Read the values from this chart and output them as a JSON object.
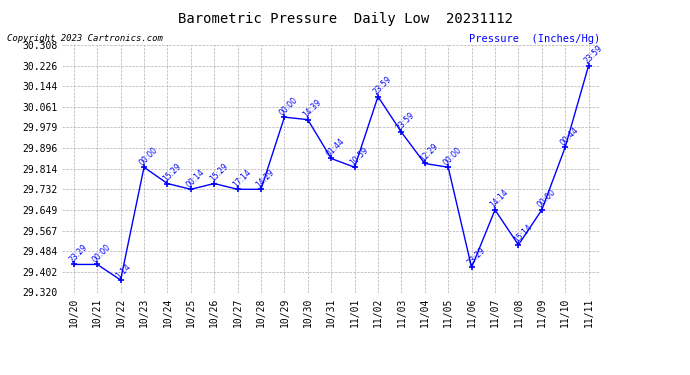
{
  "title": "Barometric Pressure  Daily Low  20231112",
  "ylabel": "Pressure  (Inches/Hg)",
  "copyright": "Copyright 2023 Cartronics.com",
  "line_color": "blue",
  "marker_color": "blue",
  "background_color": "#ffffff",
  "grid_color": "#b0b0b0",
  "ylim_min": 29.32,
  "ylim_max": 30.308,
  "dates": [
    "10/20",
    "10/21",
    "10/22",
    "10/23",
    "10/24",
    "10/25",
    "10/26",
    "10/27",
    "10/28",
    "10/29",
    "10/30",
    "10/31",
    "11/01",
    "11/02",
    "11/03",
    "11/04",
    "11/05",
    "11/06",
    "11/07",
    "11/08",
    "11/09",
    "11/10",
    "11/11"
  ],
  "values": [
    29.432,
    29.432,
    29.37,
    29.82,
    29.755,
    29.732,
    29.755,
    29.732,
    29.732,
    30.02,
    30.01,
    29.855,
    29.82,
    30.102,
    29.96,
    29.835,
    29.82,
    29.42,
    29.65,
    29.51,
    29.65,
    29.9,
    30.226
  ],
  "time_labels": [
    "23:29",
    "00:00",
    "1:14",
    "00:00",
    "15:29",
    "00:14",
    "15:29",
    "17:14",
    "14:29",
    "00:00",
    "14:39",
    "01:44",
    "10:59",
    "23:59",
    "23:59",
    "12:29",
    "00:00",
    "23:29",
    "14:14",
    "15:14",
    "00:00",
    "00:44",
    "23:59"
  ],
  "yticks": [
    29.32,
    29.402,
    29.484,
    29.567,
    29.649,
    29.732,
    29.814,
    29.896,
    29.979,
    30.061,
    30.144,
    30.226,
    30.308
  ]
}
